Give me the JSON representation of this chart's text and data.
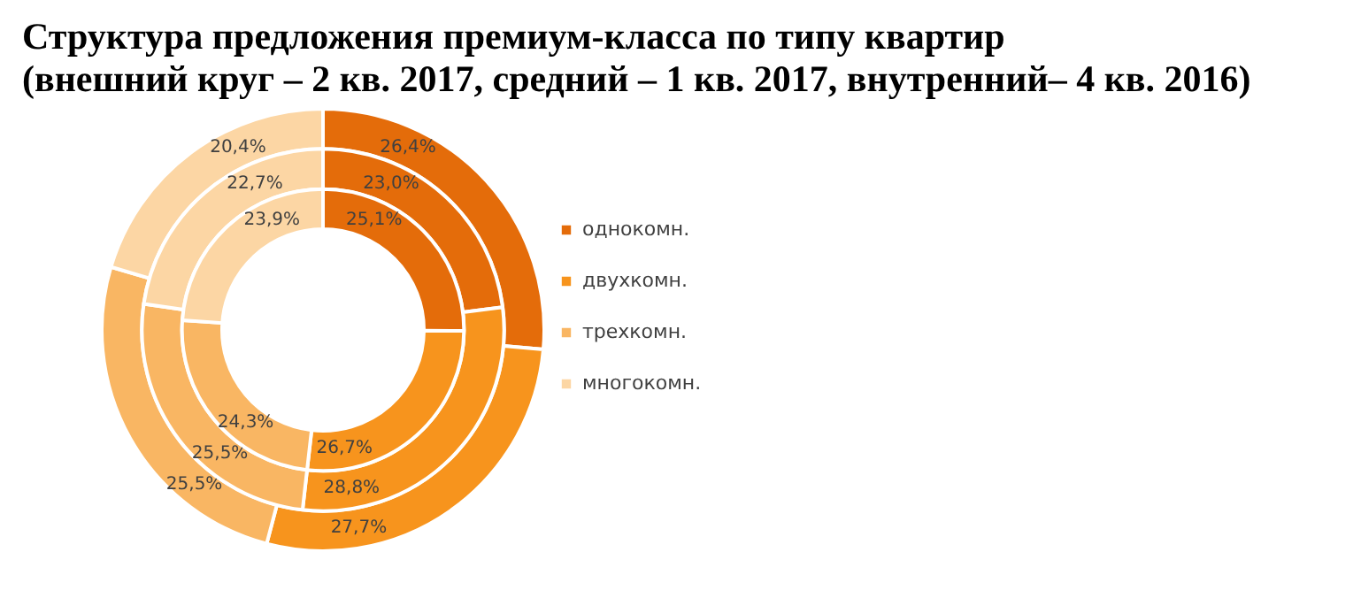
{
  "chart_data": {
    "type": "donut",
    "title": "Структура  предложения премиум-класса по типу квартир\n(внешний круг  – 2 кв. 2017, средний – 1 кв. 2017, внутренний–  4 кв. 2016)",
    "categories": [
      "однокомн.",
      "двухкомн.",
      "трехкомн.",
      "многокомн."
    ],
    "colors": [
      "#e46c0a",
      "#f7941d",
      "#f9b663",
      "#fcd6a4"
    ],
    "series": [
      {
        "values": [
          26.4,
          27.7,
          25.5,
          20.4
        ],
        "value_labels": [
          "26,4%",
          "27,7%",
          "25,5%",
          "20,4%"
        ]
      },
      {
        "values": [
          23.0,
          28.8,
          25.5,
          22.7
        ],
        "value_labels": [
          "23,0%",
          "28,8%",
          "25,5%",
          "22,7%"
        ]
      },
      {
        "values": [
          25.1,
          26.7,
          24.3,
          23.9
        ],
        "value_labels": [
          "25,1%",
          "26,7%",
          "24,3%",
          "23,9%"
        ]
      }
    ],
    "legend": "right"
  }
}
